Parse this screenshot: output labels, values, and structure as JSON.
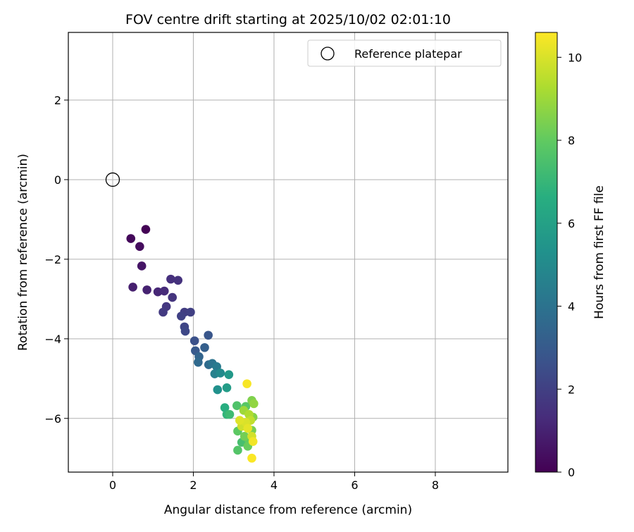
{
  "chart_data": {
    "type": "scatter",
    "title": "FOV centre drift starting at 2025/10/02 02:01:10",
    "xlabel": "Angular distance from reference (arcmin)",
    "ylabel": "Rotation from reference (arcmin)",
    "xlim": [
      -1.1,
      9.8
    ],
    "ylim": [
      -7.35,
      3.7
    ],
    "xticks": [
      0,
      2,
      4,
      6,
      8
    ],
    "yticks": [
      -6,
      -4,
      -2,
      0,
      2
    ],
    "grid": true,
    "legend": {
      "position": "top-right",
      "entries": [
        "Reference platepar"
      ]
    },
    "reference_point": {
      "label": "Reference platepar",
      "x": 0,
      "y": 0
    },
    "colorbar": {
      "label": "Hours from first FF file",
      "colormap": "viridis",
      "min": 0,
      "max": 10.6,
      "ticks": [
        0,
        2,
        4,
        6,
        8,
        10
      ]
    },
    "points": [
      [
        0.82,
        -1.25,
        0.05
      ],
      [
        0.45,
        -1.48,
        0.2
      ],
      [
        0.67,
        -1.68,
        0.35
      ],
      [
        0.72,
        -2.17,
        0.6
      ],
      [
        0.5,
        -2.7,
        0.9
      ],
      [
        0.85,
        -2.77,
        1.0
      ],
      [
        1.12,
        -2.82,
        1.15
      ],
      [
        1.28,
        -2.8,
        1.3
      ],
      [
        1.44,
        -2.5,
        1.45
      ],
      [
        1.62,
        -2.53,
        1.5
      ],
      [
        1.48,
        -2.96,
        1.6
      ],
      [
        1.33,
        -3.19,
        1.7
      ],
      [
        1.25,
        -3.33,
        1.8
      ],
      [
        1.78,
        -3.33,
        1.9
      ],
      [
        1.93,
        -3.33,
        2.0
      ],
      [
        1.7,
        -3.43,
        2.05
      ],
      [
        1.78,
        -3.7,
        2.2
      ],
      [
        1.8,
        -3.81,
        2.3
      ],
      [
        2.03,
        -4.05,
        2.6
      ],
      [
        2.37,
        -3.91,
        2.8
      ],
      [
        2.05,
        -4.3,
        2.95
      ],
      [
        2.28,
        -4.22,
        3.2
      ],
      [
        2.14,
        -4.45,
        3.4
      ],
      [
        2.12,
        -4.59,
        3.6
      ],
      [
        2.38,
        -4.65,
        3.7
      ],
      [
        2.47,
        -4.62,
        4.0
      ],
      [
        2.58,
        -4.7,
        4.3
      ],
      [
        2.53,
        -4.88,
        4.6
      ],
      [
        2.67,
        -4.86,
        5.0
      ],
      [
        2.88,
        -4.9,
        5.6
      ],
      [
        2.6,
        -5.28,
        5.3
      ],
      [
        2.83,
        -5.23,
        5.8
      ],
      [
        2.78,
        -5.73,
        6.6
      ],
      [
        2.83,
        -5.9,
        6.9
      ],
      [
        2.9,
        -5.9,
        7.2
      ],
      [
        3.08,
        -5.68,
        7.6
      ],
      [
        3.3,
        -5.7,
        7.8
      ],
      [
        3.45,
        -5.55,
        8.5
      ],
      [
        3.5,
        -5.63,
        8.8
      ],
      [
        3.1,
        -6.32,
        7.9
      ],
      [
        3.2,
        -6.6,
        7.4
      ],
      [
        3.38,
        -6.55,
        8.0
      ],
      [
        3.1,
        -6.8,
        7.7
      ],
      [
        3.35,
        -6.7,
        8.1
      ],
      [
        3.27,
        -6.45,
        8.3
      ],
      [
        3.45,
        -6.3,
        8.4
      ],
      [
        3.48,
        -5.97,
        8.6
      ],
      [
        3.25,
        -5.8,
        9.0
      ],
      [
        3.38,
        -5.9,
        9.3
      ],
      [
        3.42,
        -6.05,
        9.6
      ],
      [
        3.2,
        -6.2,
        9.8
      ],
      [
        3.3,
        -6.1,
        10.0
      ],
      [
        3.15,
        -6.05,
        10.1
      ],
      [
        3.35,
        -6.25,
        10.2
      ],
      [
        3.45,
        -6.45,
        9.9
      ],
      [
        3.48,
        -6.58,
        10.4
      ],
      [
        3.33,
        -5.13,
        10.5
      ],
      [
        3.45,
        -7.0,
        10.55
      ]
    ]
  }
}
